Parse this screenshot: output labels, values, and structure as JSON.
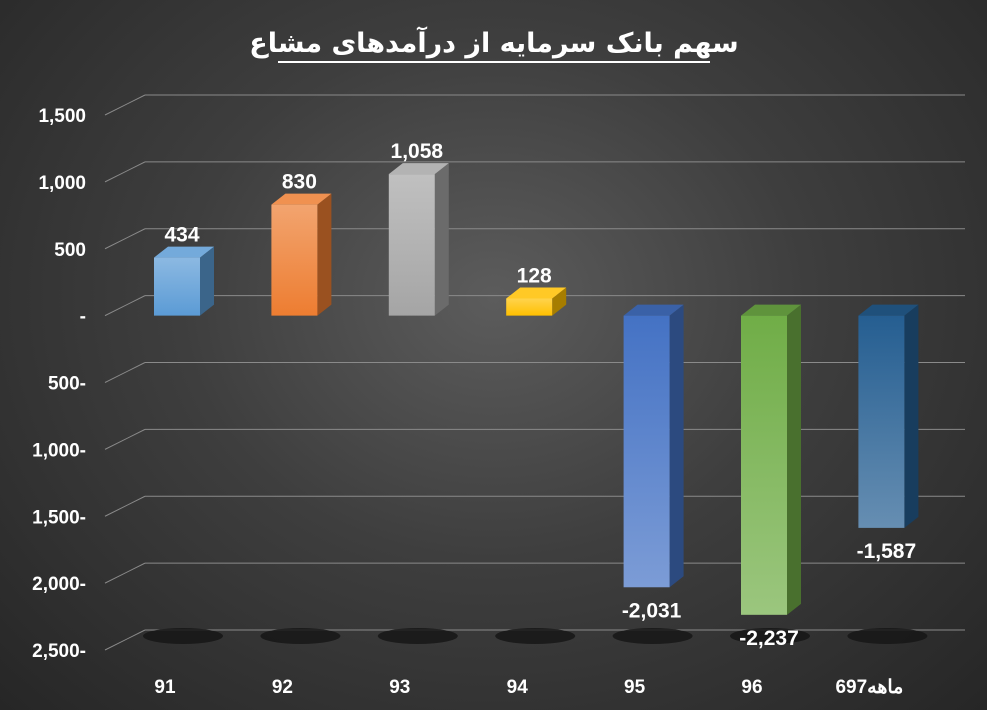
{
  "chart_data": {
    "type": "bar",
    "title": "سهم بانک سرمایه از درآمدهای مشاع",
    "categories": [
      "91",
      "92",
      "93",
      "94",
      "95",
      "96",
      "6ماهه97"
    ],
    "values": [
      434,
      830,
      1058,
      128,
      -2031,
      -2237,
      -1587
    ],
    "value_labels": [
      "434",
      "830",
      "1,058",
      "128",
      "-2,031",
      "-2,237",
      "-1,587"
    ],
    "ylim": [
      -2500,
      1500
    ],
    "yticks": [
      1500,
      1000,
      500,
      0,
      -500,
      -1000,
      -1500,
      -2000,
      -2500
    ],
    "ytick_labels": [
      "1,500",
      "1,000",
      "500",
      "-",
      "500-",
      "1,000-",
      "1,500-",
      "2,000-",
      "2,500-"
    ],
    "grid": true,
    "legend": "none",
    "colors": [
      "#5b9bd5",
      "#ed7d31",
      "#a5a5a5",
      "#ffc000",
      "#4472c4",
      "#70ad47",
      "#255e91"
    ]
  }
}
